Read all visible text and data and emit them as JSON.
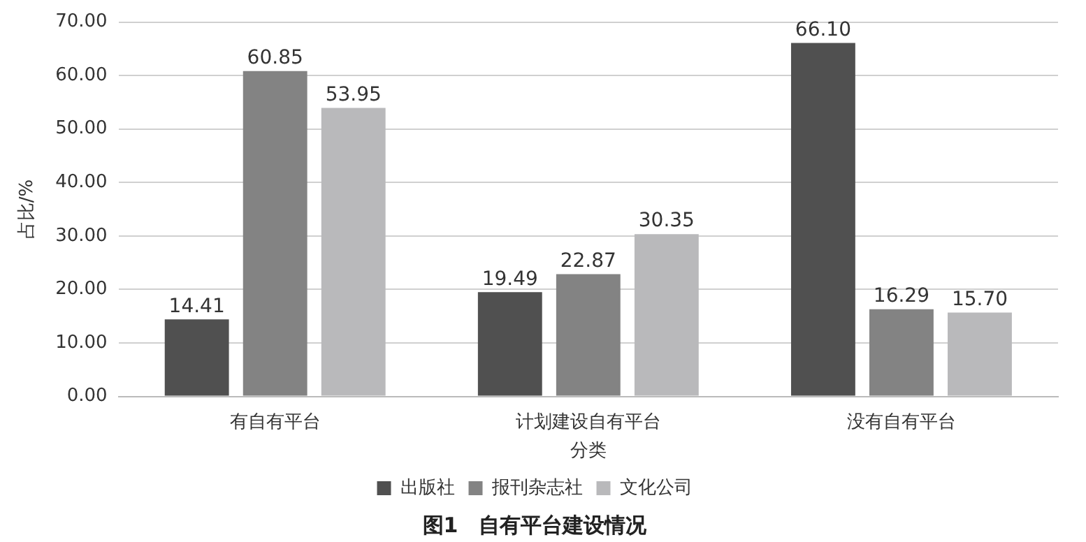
{
  "chart_data": {
    "type": "bar",
    "title": "图1　自有平台建设情况",
    "xlabel": "分类",
    "ylabel": "占比/%",
    "categories": [
      "有自有平台",
      "计划建设自有平台",
      "没有自有平台"
    ],
    "series": [
      {
        "name": "出版社",
        "color": "#505050",
        "values": [
          14.41,
          19.49,
          66.1
        ],
        "value_labels": [
          "14.41",
          "19.49",
          "66.10"
        ]
      },
      {
        "name": "报刊杂志社",
        "color": "#838383",
        "values": [
          60.85,
          22.87,
          16.29
        ],
        "value_labels": [
          "60.85",
          "22.87",
          "16.29"
        ]
      },
      {
        "name": "文化公司",
        "color": "#b9b9bb",
        "values": [
          53.95,
          30.35,
          15.7
        ],
        "value_labels": [
          "53.95",
          "30.35",
          "15.70"
        ]
      }
    ],
    "ylim": [
      0,
      70
    ],
    "yticks": [
      {
        "value": 0,
        "label": "0.00"
      },
      {
        "value": 10,
        "label": "10.00"
      },
      {
        "value": 20,
        "label": "20.00"
      },
      {
        "value": 30,
        "label": "30.00"
      },
      {
        "value": 40,
        "label": "40.00"
      },
      {
        "value": 50,
        "label": "50.00"
      },
      {
        "value": 60,
        "label": "60.00"
      },
      {
        "value": 70,
        "label": "70.00"
      }
    ],
    "grid": "y",
    "legend": "bottom"
  }
}
